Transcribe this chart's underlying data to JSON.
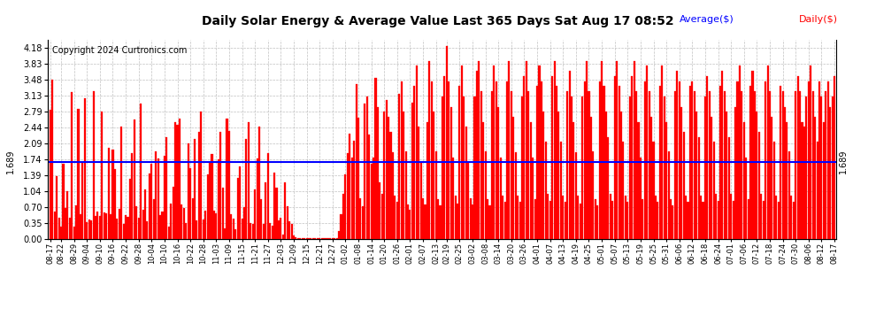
{
  "title": "Daily Solar Energy & Average Value Last 365 Days Sat Aug 17 08:52",
  "copyright": "Copyright 2024 Curtronics.com",
  "legend_average": "Average($)",
  "legend_daily": "Daily($)",
  "average_value": 1.689,
  "yticks": [
    0.0,
    0.35,
    0.7,
    1.04,
    1.39,
    1.74,
    2.09,
    2.44,
    2.79,
    3.13,
    3.48,
    3.83,
    4.18
  ],
  "ylim": [
    0.0,
    4.35
  ],
  "bar_color": "#ff0000",
  "average_line_color": "#0000ff",
  "background_color": "#ffffff",
  "grid_color": "#b0b0b0",
  "title_color": "#000000",
  "copyright_color": "#000000",
  "legend_avg_color": "#0000ff",
  "legend_daily_color": "#ff0000",
  "bar_width": 0.85,
  "daily_values": [
    2.82,
    3.48,
    0.6,
    1.37,
    0.46,
    0.28,
    1.65,
    0.68,
    1.04,
    0.47,
    3.2,
    0.27,
    0.73,
    2.84,
    0.55,
    1.66,
    3.07,
    0.37,
    0.42,
    0.41,
    3.23,
    0.5,
    0.59,
    0.51,
    2.78,
    0.58,
    0.56,
    2.0,
    0.54,
    1.96,
    1.52,
    0.44,
    0.65,
    2.45,
    0.33,
    0.52,
    0.49,
    1.32,
    1.87,
    2.61,
    0.72,
    0.47,
    2.95,
    0.63,
    1.09,
    0.39,
    1.43,
    1.64,
    0.87,
    1.91,
    1.75,
    0.52,
    0.59,
    1.82,
    2.23,
    0.27,
    0.78,
    1.14,
    2.55,
    2.49,
    2.62,
    0.75,
    0.67,
    0.35,
    2.09,
    1.55,
    0.89,
    2.18,
    0.41,
    2.33,
    2.79,
    0.43,
    0.61,
    1.41,
    1.68,
    1.85,
    0.62,
    0.57,
    1.74,
    2.33,
    1.12,
    0.24,
    2.62,
    2.35,
    0.54,
    0.45,
    0.21,
    1.34,
    1.58,
    0.45,
    0.69,
    2.18,
    2.56,
    0.35,
    0.32,
    1.09,
    1.76,
    2.45,
    0.87,
    0.32,
    1.23,
    1.87,
    0.35,
    0.29,
    1.45,
    1.12,
    0.41,
    0.47,
    0.09,
    1.23,
    0.72,
    0.38,
    0.32,
    0.07,
    0.04,
    0.02,
    0.01,
    0.01,
    0.01,
    0.01,
    0.01,
    0.01,
    0.01,
    0.01,
    0.01,
    0.01,
    0.01,
    0.01,
    0.01,
    0.01,
    0.01,
    0.01,
    0.01,
    0.01,
    0.18,
    0.55,
    0.98,
    1.42,
    1.87,
    2.31,
    1.78,
    2.15,
    3.39,
    2.64,
    0.89,
    0.72,
    2.95,
    3.12,
    2.28,
    1.65,
    1.78,
    3.52,
    2.89,
    1.23,
    0.98,
    2.78,
    3.04,
    2.67,
    2.34,
    1.89,
    0.95,
    0.82,
    3.18,
    3.45,
    2.78,
    1.92,
    0.76,
    0.63,
    2.98,
    3.34,
    3.78,
    2.45,
    1.67,
    0.89,
    0.75,
    2.56,
    3.89,
    3.45,
    2.78,
    1.92,
    0.87,
    0.73,
    3.12,
    3.56,
    4.21,
    3.45,
    2.89,
    1.78,
    0.95,
    0.78,
    3.34,
    3.78,
    3.12,
    2.45,
    1.67,
    0.89,
    0.75,
    3.12,
    3.67,
    3.89,
    3.23,
    2.56,
    1.92,
    0.87,
    0.73,
    3.23,
    3.78,
    3.45,
    2.89,
    1.78,
    0.95,
    0.82,
    3.45,
    3.89,
    3.23,
    2.67,
    1.89,
    0.95,
    0.82,
    3.12,
    3.56,
    3.89,
    3.23,
    2.56,
    1.78,
    0.87,
    3.34,
    3.78,
    3.45,
    2.78,
    2.12,
    0.98,
    0.83,
    3.56,
    3.89,
    3.34,
    2.78,
    2.12,
    0.95,
    0.82,
    3.23,
    3.67,
    3.12,
    2.56,
    1.89,
    0.95,
    0.78,
    3.12,
    3.45,
    3.89,
    3.23,
    2.67,
    1.92,
    0.87,
    0.73,
    3.45,
    3.89,
    3.34,
    2.78,
    2.23,
    0.98,
    0.83,
    3.56,
    3.89,
    3.34,
    2.78,
    2.12,
    0.95,
    0.82,
    3.12,
    3.56,
    3.89,
    3.23,
    2.56,
    1.78,
    0.87,
    3.45,
    3.78,
    3.23,
    2.67,
    2.12,
    0.95,
    0.82,
    3.34,
    3.78,
    3.12,
    2.56,
    1.92,
    0.87,
    0.73,
    3.23,
    3.67,
    3.45,
    2.89,
    2.34,
    0.95,
    0.82,
    3.34,
    3.45,
    3.23,
    2.78,
    2.23,
    0.95,
    0.82,
    3.12,
    3.56,
    3.23,
    2.67,
    2.12,
    0.98,
    0.83,
    3.34,
    3.67,
    3.23,
    2.78,
    2.23,
    0.98,
    0.83,
    2.89,
    3.45,
    3.78,
    3.23,
    2.56,
    1.78,
    0.87,
    3.34,
    3.67,
    3.23,
    2.78,
    2.34,
    0.98,
    0.83,
    3.45,
    3.78,
    3.23,
    2.67,
    2.12,
    0.95,
    0.82,
    3.34,
    3.23,
    2.89,
    2.56,
    1.92,
    0.95,
    0.82,
    3.23,
    3.56,
    3.23,
    2.56,
    2.45,
    3.12,
    3.45,
    3.78,
    3.23,
    2.67,
    2.12,
    3.45,
    3.12,
    2.56,
    3.23,
    3.45,
    2.89,
    3.12,
    3.56
  ],
  "x_tick_labels": [
    "08-17",
    "08-22",
    "08-29",
    "09-04",
    "09-10",
    "09-16",
    "09-22",
    "09-28",
    "10-04",
    "10-10",
    "10-16",
    "10-22",
    "10-28",
    "11-03",
    "11-09",
    "11-15",
    "11-21",
    "11-27",
    "12-03",
    "12-09",
    "12-15",
    "12-21",
    "12-27",
    "01-02",
    "01-08",
    "01-14",
    "01-20",
    "01-26",
    "02-01",
    "02-07",
    "02-13",
    "02-19",
    "02-25",
    "03-02",
    "03-08",
    "03-14",
    "03-20",
    "03-26",
    "04-01",
    "04-07",
    "04-13",
    "04-19",
    "04-25",
    "05-01",
    "05-07",
    "05-13",
    "05-19",
    "05-25",
    "05-31",
    "06-06",
    "06-12",
    "06-18",
    "06-24",
    "07-01",
    "07-06",
    "07-12",
    "07-18",
    "07-24",
    "07-30",
    "08-06",
    "08-12",
    "08-17"
  ]
}
